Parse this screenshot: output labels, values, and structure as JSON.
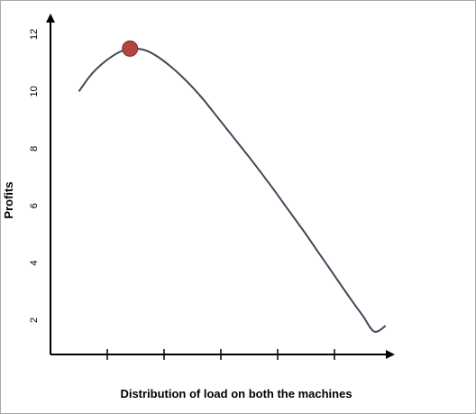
{
  "chart_data": {
    "type": "line",
    "title": "",
    "xlabel": "Distribution of load on both the machines",
    "ylabel": "Profits",
    "y_ticks": [
      "2",
      "4",
      "6",
      "8",
      "10",
      "12"
    ],
    "x_tick_labels": [],
    "x_tick_count": 5,
    "ylim": [
      0.8,
      13.2
    ],
    "x": [
      0.5,
      0.7,
      0.9,
      1.1,
      1.3,
      1.5,
      1.7,
      1.9,
      2.1,
      2.3,
      2.5,
      2.7,
      2.9,
      3.1,
      3.3,
      3.5,
      3.7,
      3.9,
      4.1,
      4.3,
      4.5,
      4.7,
      4.9,
      5.1,
      5.3,
      5.5,
      5.7,
      5.9
    ],
    "series": [
      {
        "values": [
          10.0,
          10.55,
          10.95,
          11.25,
          11.45,
          11.5,
          11.42,
          11.2,
          10.9,
          10.55,
          10.15,
          9.7,
          9.2,
          8.7,
          8.2,
          7.7,
          7.18,
          6.65,
          6.1,
          5.55,
          5.0,
          4.42,
          3.85,
          3.27,
          2.7,
          2.15,
          1.6,
          1.8
        ],
        "color": "#404855"
      }
    ],
    "highlight_point": {
      "x": 1.4,
      "y": 11.5,
      "color": "#b5463f"
    },
    "grid": false
  }
}
